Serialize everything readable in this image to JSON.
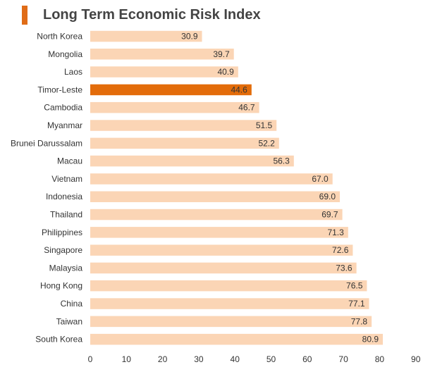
{
  "chart_data": {
    "type": "bar",
    "orientation": "horizontal",
    "title": "Long Term Economic Risk Index",
    "categories": [
      "North Korea",
      "Mongolia",
      "Laos",
      "Timor-Leste",
      "Cambodia",
      "Myanmar",
      "Brunei Darussalam",
      "Macau",
      "Vietnam",
      "Indonesia",
      "Thailand",
      "Philippines",
      "Singapore",
      "Malaysia",
      "Hong Kong",
      "China",
      "Taiwan",
      "South Korea"
    ],
    "values": [
      30.9,
      39.7,
      40.9,
      44.6,
      46.7,
      51.5,
      52.2,
      56.3,
      67.0,
      69.0,
      69.7,
      71.3,
      72.6,
      73.6,
      76.5,
      77.1,
      77.8,
      80.9
    ],
    "value_labels": [
      "30.9",
      "39.7",
      "40.9",
      "44.6",
      "46.7",
      "51.5",
      "52.2",
      "56.3",
      "67.0",
      "69.0",
      "69.7",
      "71.3",
      "72.6",
      "73.6",
      "76.5",
      "77.1",
      "77.8",
      "80.9"
    ],
    "highlight_category": "Timor-Leste",
    "xlim": [
      0,
      90
    ],
    "x_ticks": [
      "0",
      "10",
      "20",
      "30",
      "40",
      "50",
      "60",
      "70",
      "80",
      "90"
    ],
    "xlabel": "",
    "ylabel": "",
    "grid": false,
    "colors": {
      "bar": "#fbd5b5",
      "highlight": "#e36c0a",
      "title_marker": "#e06c17",
      "title_text": "#444444",
      "text": "#333333"
    }
  }
}
